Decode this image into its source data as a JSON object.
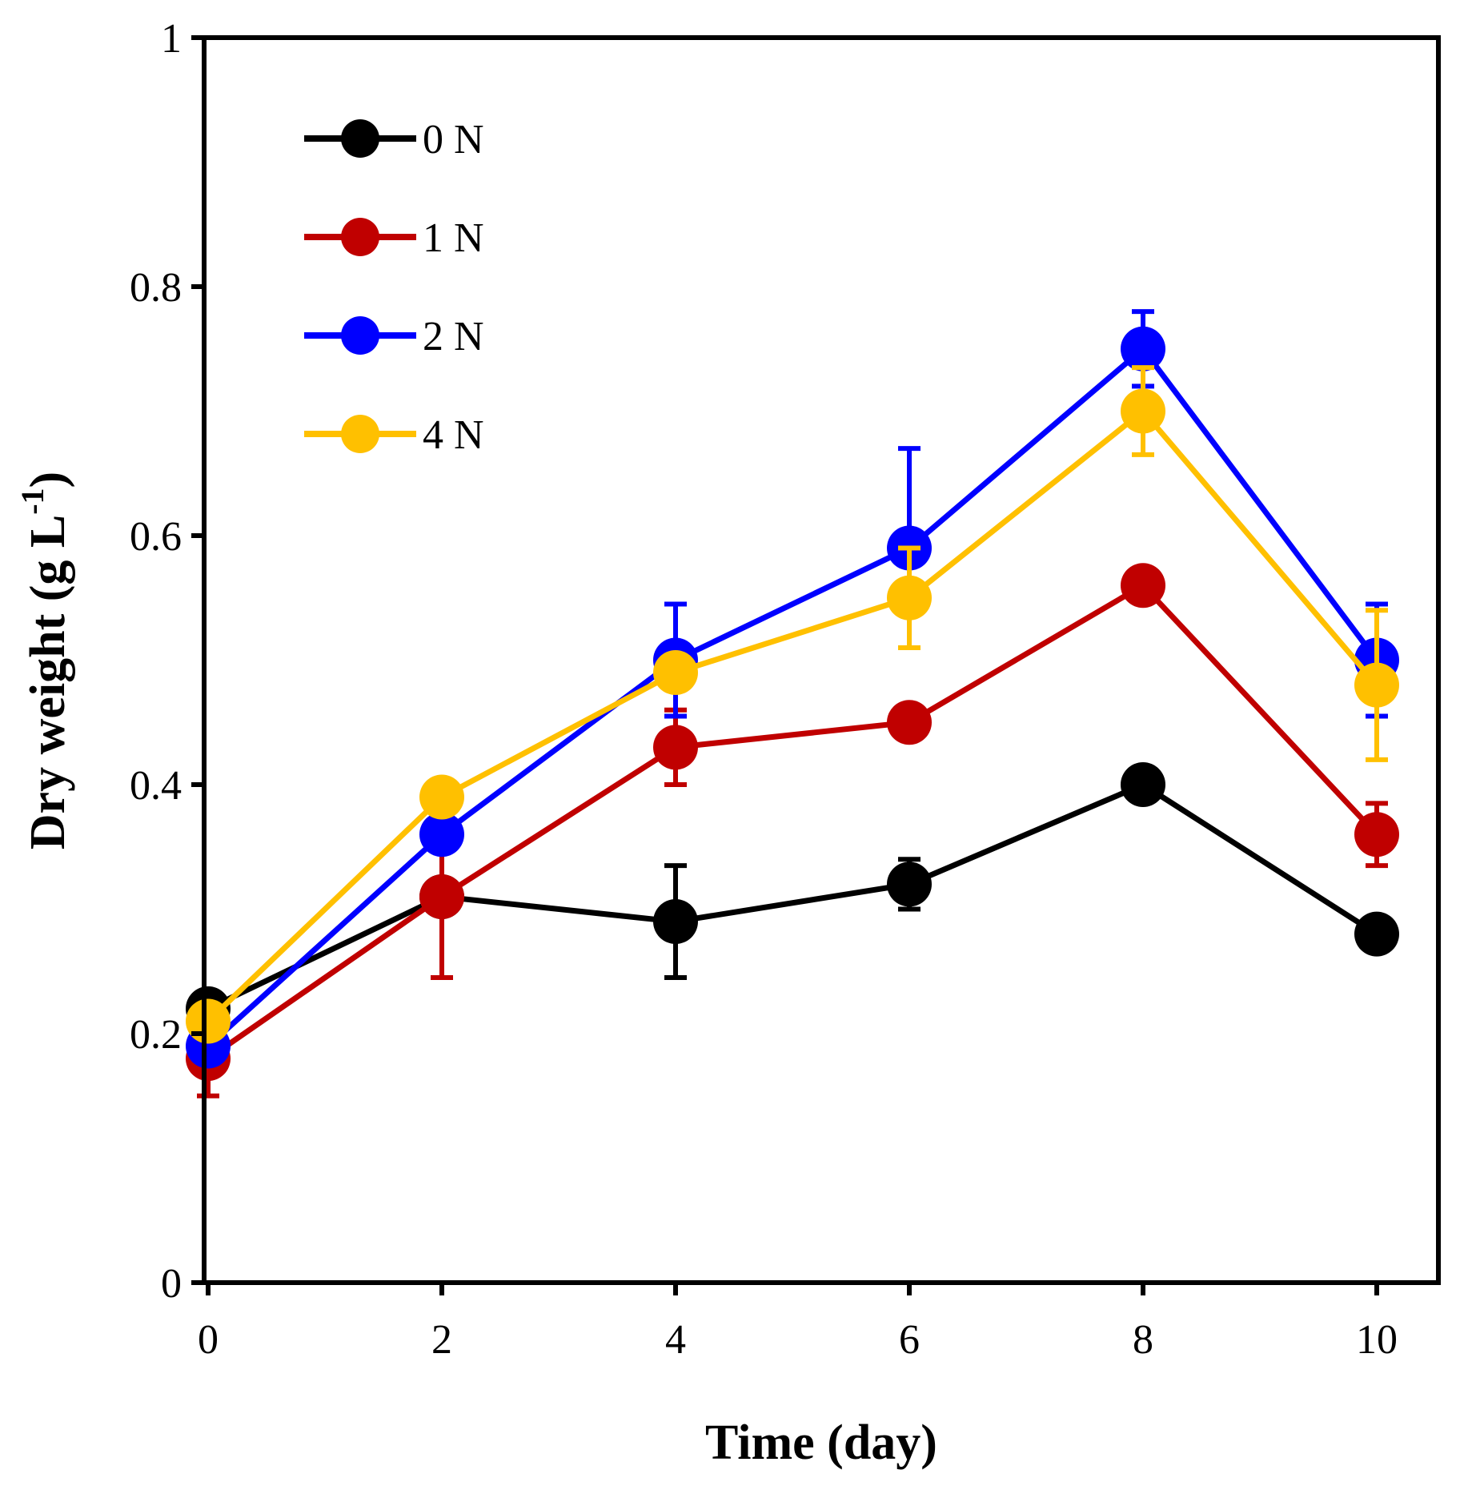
{
  "chart_data": {
    "type": "line",
    "title": "",
    "xlabel": "Time (day)",
    "ylabel_main": "Dry weight (g L",
    "ylabel_sup": "-1",
    "ylabel_close": ")",
    "xlim": [
      0,
      10.5
    ],
    "ylim": [
      0,
      1
    ],
    "xticks": [
      0,
      2,
      4,
      6,
      8,
      10
    ],
    "xtick_labels": [
      "0",
      "2",
      "4",
      "6",
      "8",
      "10"
    ],
    "yticks": [
      0,
      0.2,
      0.4,
      0.6,
      0.8,
      1
    ],
    "ytick_labels": [
      "0",
      "0.2",
      "0.4",
      "0.6",
      "0.8",
      "1"
    ],
    "legend_position": "top-left",
    "x": [
      0,
      2,
      4,
      6,
      8,
      10
    ],
    "series": [
      {
        "name": "0 N",
        "color": "#000000",
        "values": [
          0.22,
          0.31,
          0.29,
          0.32,
          0.4,
          0.28
        ],
        "errors": [
          0.0,
          0.0,
          0.045,
          0.02,
          0.0,
          0.0
        ]
      },
      {
        "name": "1 N",
        "color": "#c00000",
        "values": [
          0.18,
          0.31,
          0.43,
          0.45,
          0.56,
          0.36
        ],
        "errors": [
          0.03,
          0.065,
          0.03,
          0.0,
          0.0,
          0.025
        ]
      },
      {
        "name": "2 N",
        "color": "#0000ff",
        "values": [
          0.19,
          0.36,
          0.5,
          0.59,
          0.75,
          0.5
        ],
        "errors": [
          0.0,
          0.0,
          0.045,
          0.08,
          0.03,
          0.045
        ]
      },
      {
        "name": "4 N",
        "color": "#ffc000",
        "values": [
          0.21,
          0.39,
          0.49,
          0.55,
          0.7,
          0.48
        ],
        "errors": [
          0.0,
          0.0,
          0.0,
          0.04,
          0.035,
          0.06
        ]
      }
    ]
  }
}
